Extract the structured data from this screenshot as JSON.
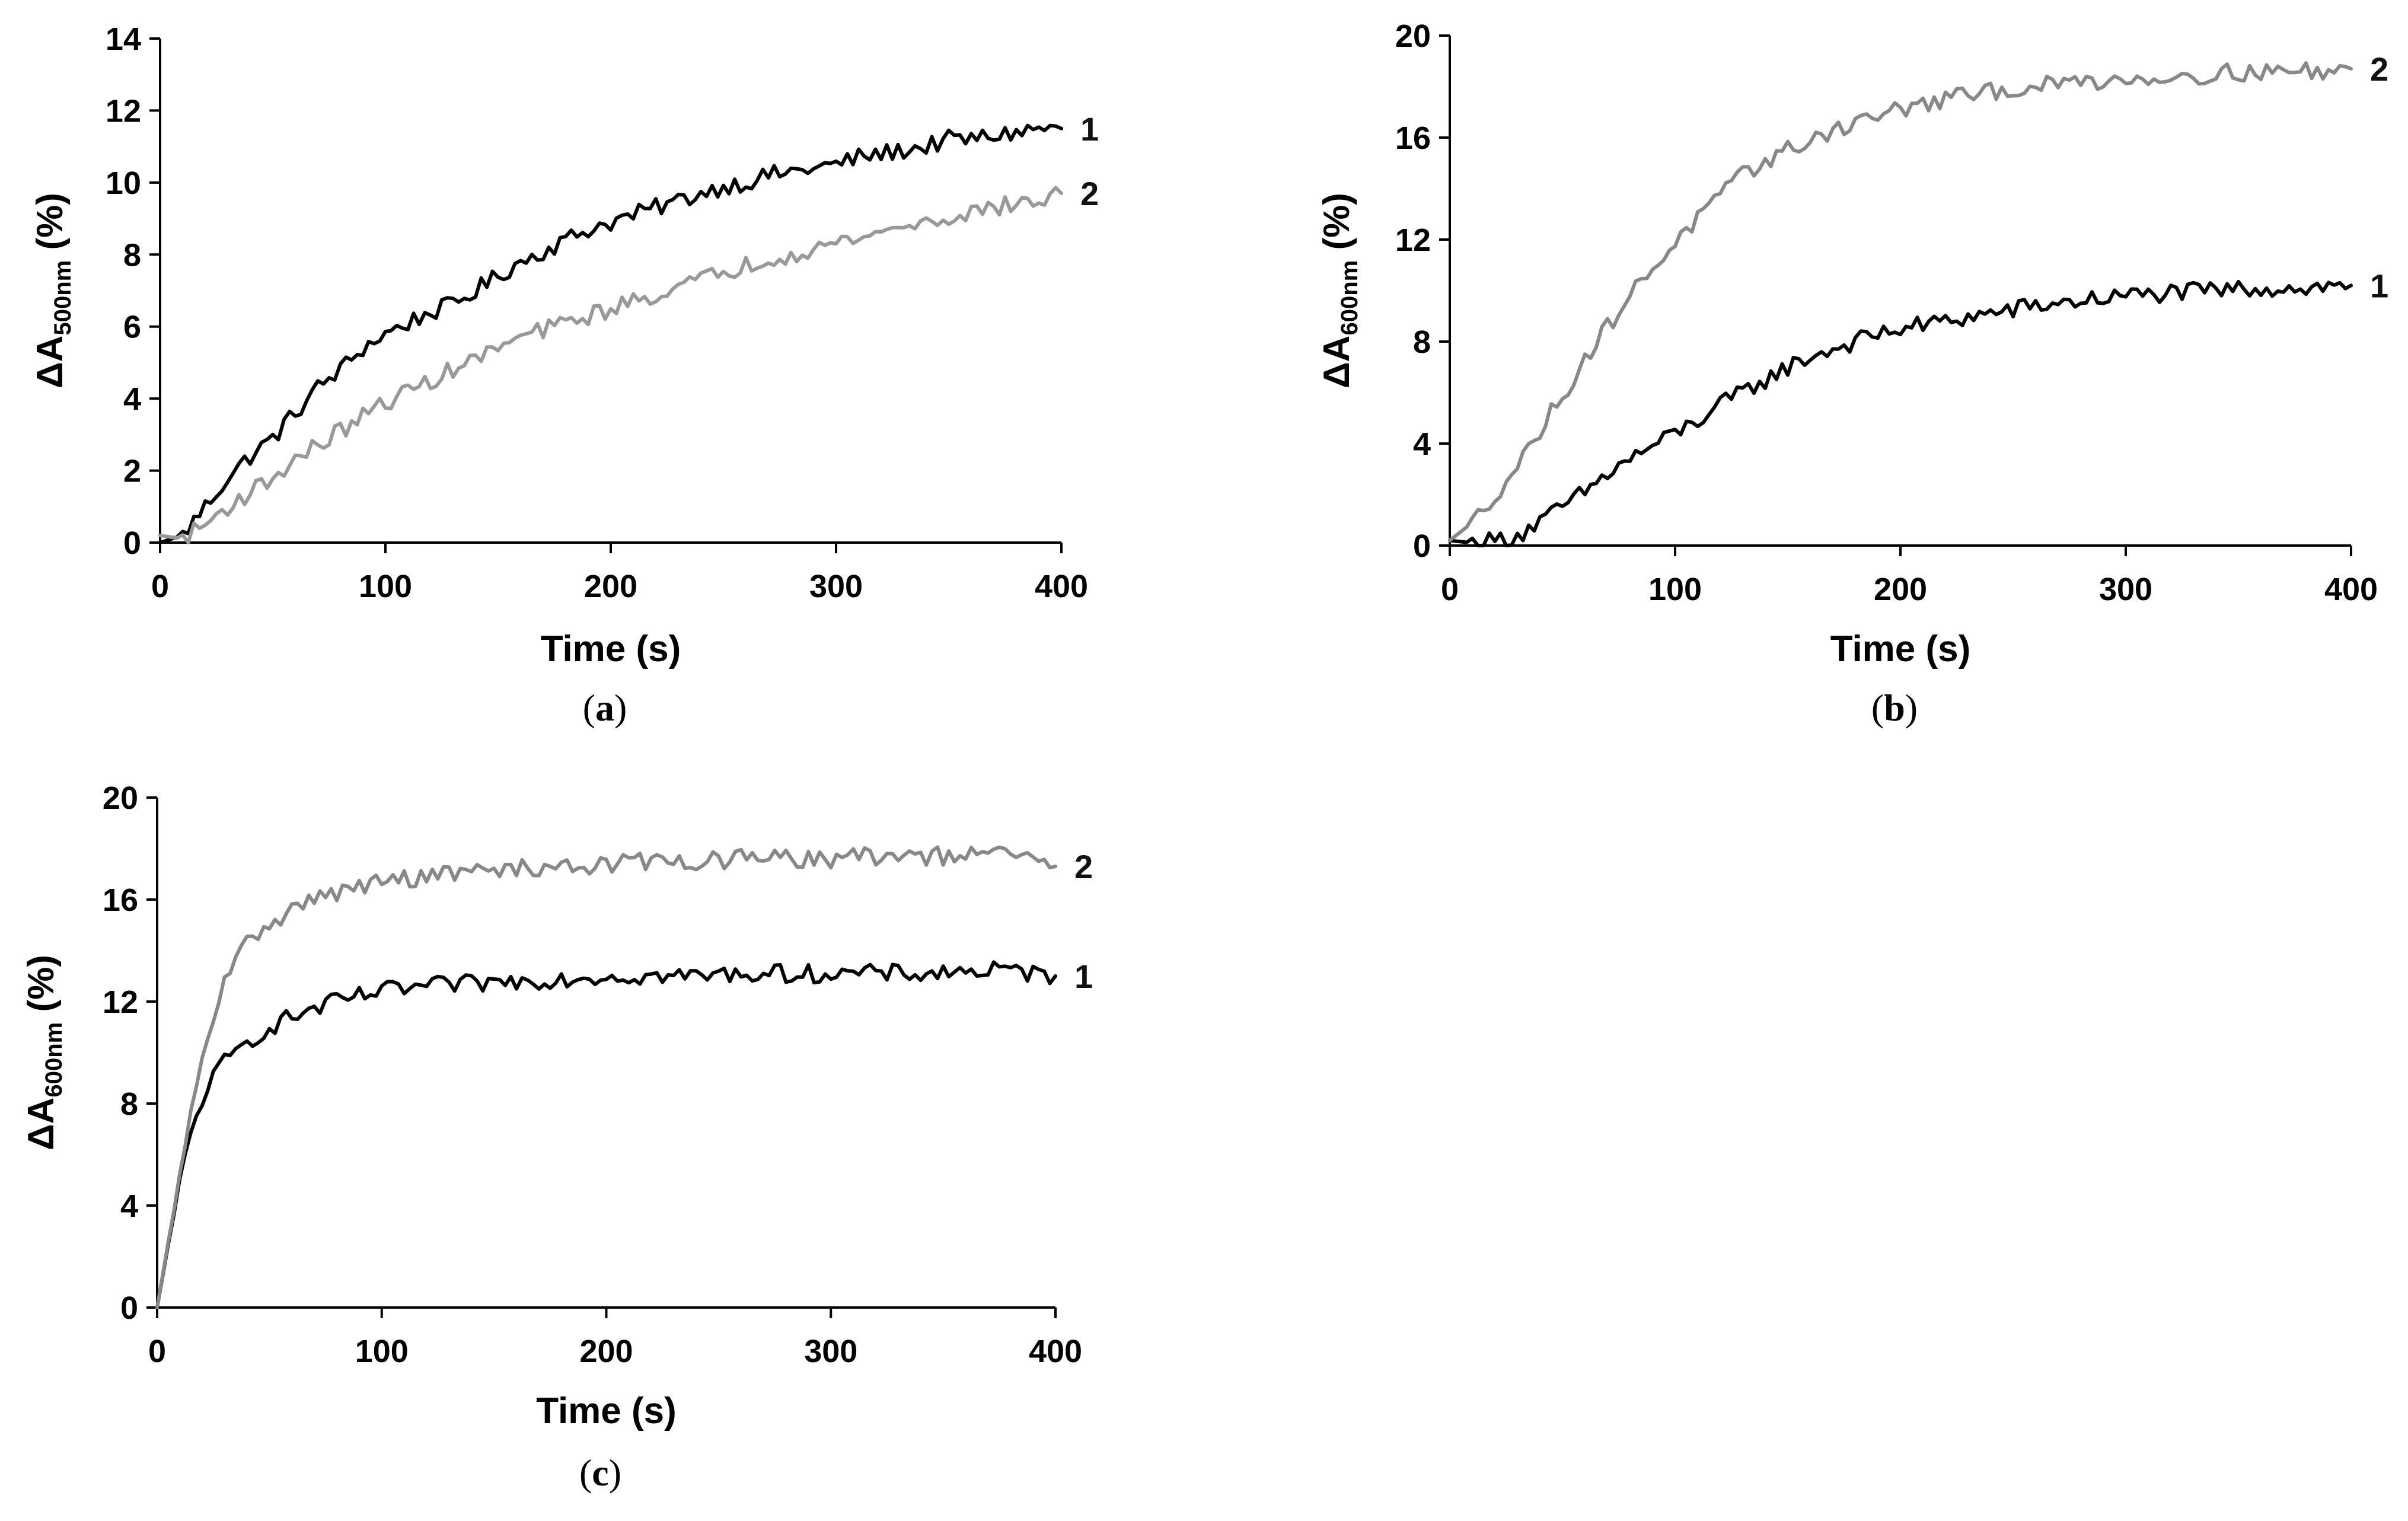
{
  "chart_data": [
    {
      "type": "line",
      "panel_label": "a",
      "xlabel": "Time (s)",
      "ylabel": {
        "prefix": "ΔA",
        "sub": "500nm",
        "suffix": " (%)"
      },
      "xlim": [
        0,
        400
      ],
      "ylim": [
        0,
        14
      ],
      "xticks": [
        0,
        100,
        200,
        300,
        400
      ],
      "yticks": [
        0,
        2,
        4,
        6,
        8,
        10,
        12,
        14
      ],
      "series": [
        {
          "name": "1",
          "color": "#000000",
          "x": [
            0,
            10,
            20,
            30,
            40,
            50,
            60,
            70,
            80,
            90,
            100,
            110,
            120,
            130,
            140,
            150,
            160,
            170,
            180,
            190,
            200,
            210,
            220,
            230,
            240,
            250,
            260,
            270,
            280,
            290,
            300,
            310,
            320,
            330,
            340,
            350,
            360,
            370,
            380,
            390,
            400
          ],
          "y": [
            0,
            0.2,
            1.0,
            1.8,
            2.4,
            2.9,
            3.6,
            4.3,
            4.8,
            5.4,
            5.8,
            6.1,
            6.4,
            6.6,
            7.0,
            7.4,
            7.8,
            8.1,
            8.4,
            8.7,
            8.9,
            9.1,
            9.3,
            9.5,
            9.7,
            9.9,
            10.0,
            10.2,
            10.3,
            10.4,
            10.5,
            10.7,
            10.8,
            10.9,
            11.0,
            11.2,
            11.2,
            11.3,
            11.4,
            11.5,
            11.5
          ]
        },
        {
          "name": "2",
          "color": "#999999",
          "x": [
            0,
            10,
            20,
            30,
            40,
            50,
            60,
            70,
            80,
            90,
            100,
            110,
            120,
            130,
            140,
            150,
            160,
            170,
            180,
            190,
            200,
            210,
            220,
            230,
            240,
            250,
            260,
            270,
            280,
            290,
            300,
            310,
            320,
            330,
            340,
            350,
            360,
            370,
            380,
            390,
            400
          ],
          "y": [
            0.2,
            0.1,
            0.5,
            1.0,
            1.4,
            1.8,
            2.3,
            2.7,
            3.1,
            3.5,
            3.9,
            4.2,
            4.5,
            4.8,
            5.1,
            5.4,
            5.7,
            5.9,
            6.1,
            6.3,
            6.5,
            6.7,
            6.9,
            7.1,
            7.3,
            7.5,
            7.7,
            7.9,
            8.0,
            8.2,
            8.3,
            8.5,
            8.6,
            8.8,
            8.9,
            9.0,
            9.2,
            9.3,
            9.4,
            9.5,
            9.7
          ]
        }
      ]
    },
    {
      "type": "line",
      "panel_label": "b",
      "xlabel": "Time (s)",
      "ylabel": {
        "prefix": "ΔA",
        "sub": "600nm",
        "suffix": " (%)"
      },
      "xlim": [
        0,
        400
      ],
      "ylim": [
        0,
        20
      ],
      "xticks": [
        0,
        100,
        200,
        300,
        400
      ],
      "yticks": [
        0,
        4,
        8,
        12,
        16,
        20
      ],
      "series": [
        {
          "name": "1",
          "color": "#000000",
          "x": [
            0,
            10,
            20,
            30,
            40,
            50,
            60,
            70,
            80,
            90,
            100,
            110,
            120,
            130,
            140,
            150,
            160,
            170,
            180,
            190,
            200,
            220,
            240,
            260,
            280,
            300,
            320,
            340,
            360,
            380,
            400
          ],
          "y": [
            0.2,
            0.1,
            0.2,
            0.4,
            0.9,
            1.5,
            2.1,
            2.8,
            3.4,
            3.9,
            4.4,
            4.9,
            5.5,
            6.0,
            6.5,
            7.0,
            7.4,
            7.7,
            8.0,
            8.3,
            8.5,
            8.8,
            9.1,
            9.4,
            9.6,
            9.8,
            9.9,
            10.0,
            10.1,
            10.1,
            10.2
          ]
        },
        {
          "name": "2",
          "color": "#888888",
          "x": [
            0,
            10,
            20,
            30,
            40,
            50,
            60,
            70,
            80,
            90,
            100,
            110,
            120,
            130,
            140,
            150,
            160,
            170,
            180,
            190,
            200,
            220,
            240,
            260,
            280,
            300,
            320,
            340,
            360,
            380,
            400
          ],
          "y": [
            0.2,
            0.9,
            2.0,
            3.1,
            4.5,
            5.9,
            7.3,
            8.6,
            9.8,
            10.9,
            11.9,
            12.8,
            13.7,
            14.5,
            15.1,
            15.5,
            15.9,
            16.3,
            16.6,
            16.9,
            17.1,
            17.5,
            17.8,
            18.0,
            18.2,
            18.3,
            18.4,
            18.5,
            18.6,
            18.6,
            18.7
          ]
        }
      ]
    },
    {
      "type": "line",
      "panel_label": "c",
      "xlabel": "Time (s)",
      "ylabel": {
        "prefix": "ΔA",
        "sub": "600nm",
        "suffix": " (%)"
      },
      "xlim": [
        0,
        400
      ],
      "ylim": [
        0,
        20
      ],
      "xticks": [
        0,
        100,
        200,
        300,
        400
      ],
      "yticks": [
        0,
        4,
        8,
        12,
        16,
        20
      ],
      "series": [
        {
          "name": "1",
          "color": "#000000",
          "x": [
            0,
            5,
            10,
            15,
            20,
            25,
            30,
            40,
            50,
            60,
            70,
            80,
            90,
            100,
            120,
            140,
            160,
            180,
            200,
            220,
            240,
            260,
            280,
            300,
            320,
            340,
            360,
            380,
            400
          ],
          "y": [
            0,
            2.5,
            4.8,
            6.8,
            8.2,
            9.0,
            9.6,
            10.4,
            11.0,
            11.4,
            11.7,
            12.0,
            12.2,
            12.4,
            12.6,
            12.7,
            12.8,
            12.9,
            13.0,
            13.0,
            13.0,
            13.1,
            13.1,
            13.1,
            13.1,
            13.1,
            13.2,
            13.2,
            13.0
          ]
        },
        {
          "name": "2",
          "color": "#888888",
          "x": [
            0,
            5,
            10,
            15,
            20,
            25,
            30,
            40,
            50,
            60,
            70,
            80,
            90,
            100,
            120,
            140,
            160,
            180,
            200,
            220,
            240,
            260,
            280,
            300,
            320,
            340,
            360,
            380,
            400
          ],
          "y": [
            0,
            2.6,
            5.0,
            7.5,
            9.6,
            11.4,
            12.8,
            14.3,
            15.1,
            15.6,
            16.0,
            16.3,
            16.5,
            16.7,
            16.9,
            17.1,
            17.2,
            17.3,
            17.4,
            17.5,
            17.5,
            17.6,
            17.6,
            17.6,
            17.7,
            17.7,
            17.7,
            17.8,
            17.3
          ]
        }
      ]
    }
  ]
}
